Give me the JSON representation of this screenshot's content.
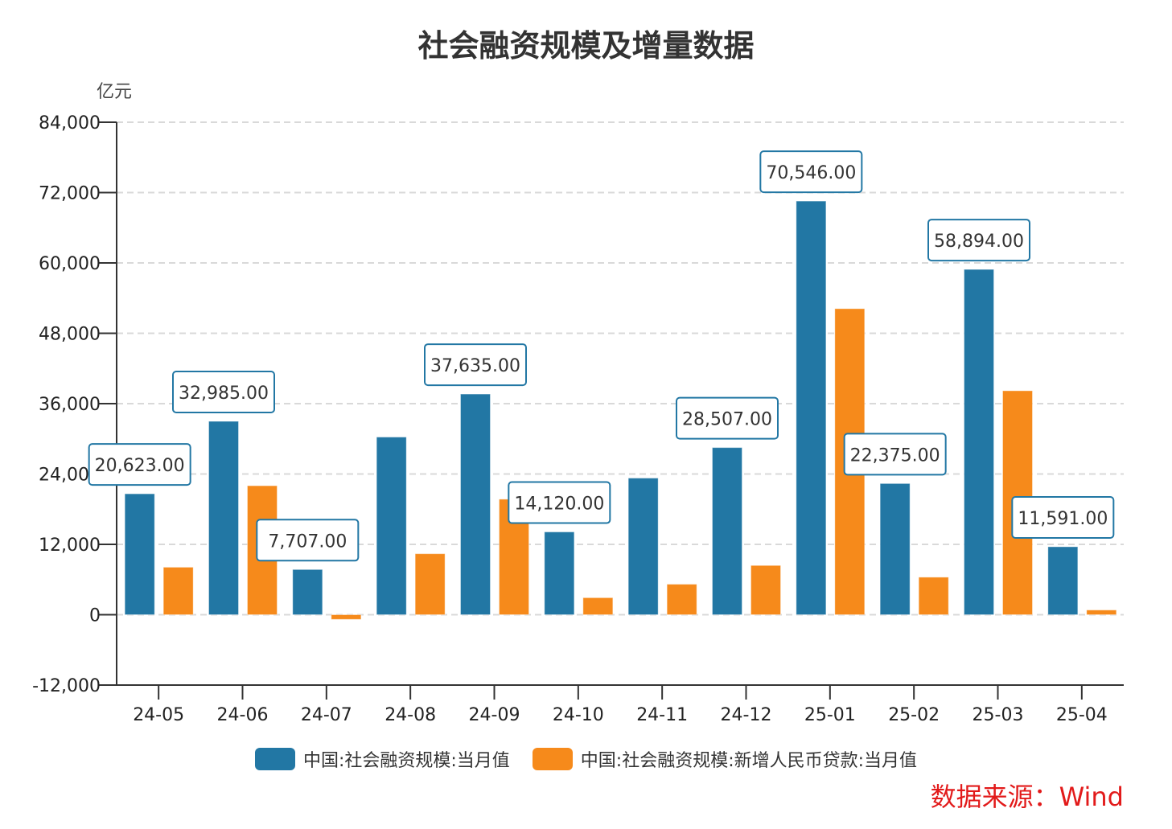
{
  "chart_data": {
    "type": "bar",
    "title": "社会融资规模及增量数据",
    "ylabel": "亿元",
    "ylim": [
      -12000,
      84000
    ],
    "yticks": [
      -12000,
      0,
      12000,
      24000,
      36000,
      48000,
      60000,
      72000,
      84000
    ],
    "ytick_labels": [
      "-12,000",
      "0",
      "12,000",
      "24,000",
      "36,000",
      "48,000",
      "60,000",
      "72,000",
      "84,000"
    ],
    "grid": true,
    "legend_placement": "bottom",
    "categories": [
      "24-05",
      "24-06",
      "24-07",
      "24-08",
      "24-09",
      "24-10",
      "24-11",
      "24-12",
      "25-01",
      "25-02",
      "25-03",
      "25-04"
    ],
    "series": [
      {
        "name": "中国:社会融资规模:当月值",
        "color": "#2277a4",
        "values": [
          20623,
          32985,
          7707,
          30300,
          37635,
          14120,
          23300,
          28507,
          70546,
          22375,
          58894,
          11591
        ],
        "data_labels": [
          "20,623.00",
          "32,985.00",
          "7,707.00",
          null,
          "37,635.00",
          "14,120.00",
          null,
          "28,507.00",
          "70,546.00",
          "22,375.00",
          "58,894.00",
          "11,591.00"
        ]
      },
      {
        "name": "中国:社会融资规模:新增人民币贷款:当月值",
        "color": "#f68a1b",
        "values": [
          8100,
          22000,
          -800,
          10400,
          19700,
          2900,
          5200,
          8400,
          52200,
          6400,
          38200,
          800
        ]
      }
    ]
  },
  "source": "数据来源：Wind"
}
